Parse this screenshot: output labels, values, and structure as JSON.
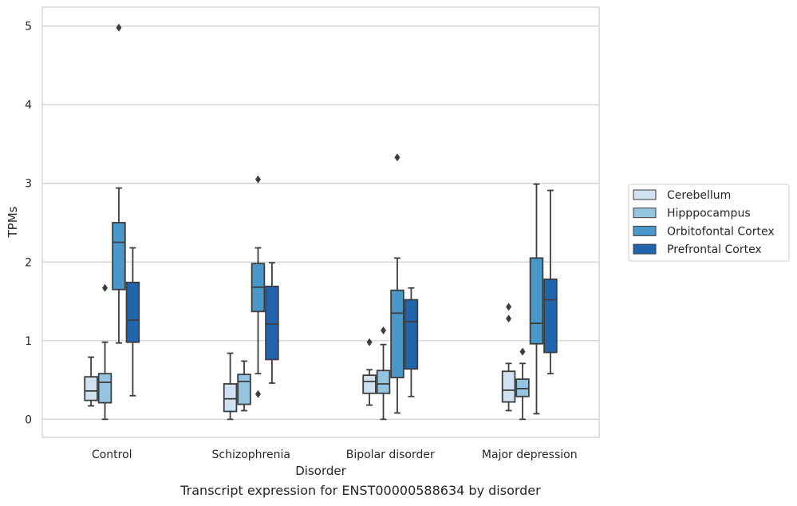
{
  "caption": "Transcript expression for ENST00000588634 by disorder",
  "chart_data": {
    "type": "box",
    "title": "",
    "xlabel": "Disorder",
    "ylabel": "TPMs",
    "ylim": [
      -0.23,
      5.24
    ],
    "yticks": [
      0,
      1,
      2,
      3,
      4,
      5
    ],
    "grid": "horizontal",
    "legend_placement": "right",
    "categories": [
      "Control",
      "Schizophrenia",
      "Bipolar disorder",
      "Major depression"
    ],
    "series": [
      {
        "name": "Cerebellum",
        "color": "#d0e1f2",
        "boxes": [
          {
            "whislo": 0.17,
            "q1": 0.24,
            "med": 0.36,
            "q3": 0.54,
            "whishi": 0.79,
            "fliers": []
          },
          {
            "whislo": 0.0,
            "q1": 0.1,
            "med": 0.26,
            "q3": 0.45,
            "whishi": 0.84,
            "fliers": []
          },
          {
            "whislo": 0.18,
            "q1": 0.33,
            "med": 0.48,
            "q3": 0.56,
            "whishi": 0.63,
            "fliers": [
              0.98
            ]
          },
          {
            "whislo": 0.11,
            "q1": 0.22,
            "med": 0.37,
            "q3": 0.61,
            "whishi": 0.71,
            "fliers": [
              1.28,
              1.43
            ]
          }
        ]
      },
      {
        "name": "Hipppocampus",
        "color": "#94c4df",
        "boxes": [
          {
            "whislo": 0.0,
            "q1": 0.21,
            "med": 0.47,
            "q3": 0.58,
            "whishi": 0.98,
            "fliers": [
              1.67
            ]
          },
          {
            "whislo": 0.11,
            "q1": 0.19,
            "med": 0.48,
            "q3": 0.57,
            "whishi": 0.74,
            "fliers": []
          },
          {
            "whislo": 0.0,
            "q1": 0.33,
            "med": 0.45,
            "q3": 0.62,
            "whishi": 0.95,
            "fliers": [
              1.13
            ]
          },
          {
            "whislo": 0.0,
            "q1": 0.29,
            "med": 0.39,
            "q3": 0.51,
            "whishi": 0.71,
            "fliers": [
              0.86
            ]
          }
        ]
      },
      {
        "name": "Orbitofontal Cortex",
        "color": "#4a98c9",
        "boxes": [
          {
            "whislo": 0.97,
            "q1": 1.65,
            "med": 2.25,
            "q3": 2.5,
            "whishi": 2.94,
            "fliers": [
              4.98
            ]
          },
          {
            "whislo": 0.58,
            "q1": 1.37,
            "med": 1.68,
            "q3": 1.98,
            "whishi": 2.18,
            "fliers": [
              0.32,
              3.05
            ]
          },
          {
            "whislo": 0.08,
            "q1": 0.53,
            "med": 1.35,
            "q3": 1.64,
            "whishi": 2.05,
            "fliers": [
              3.33
            ]
          },
          {
            "whislo": 0.07,
            "q1": 0.96,
            "med": 1.22,
            "q3": 2.05,
            "whishi": 2.99,
            "fliers": []
          }
        ]
      },
      {
        "name": "Prefrontal Cortex",
        "color": "#2166ac",
        "boxes": [
          {
            "whislo": 0.3,
            "q1": 0.98,
            "med": 1.26,
            "q3": 1.74,
            "whishi": 2.18,
            "fliers": []
          },
          {
            "whislo": 0.46,
            "q1": 0.76,
            "med": 1.21,
            "q3": 1.69,
            "whishi": 1.99,
            "fliers": []
          },
          {
            "whislo": 0.29,
            "q1": 0.64,
            "med": 1.24,
            "q3": 1.52,
            "whishi": 1.67,
            "fliers": []
          },
          {
            "whislo": 0.58,
            "q1": 0.85,
            "med": 1.52,
            "q3": 1.78,
            "whishi": 2.91,
            "fliers": []
          }
        ]
      }
    ]
  }
}
